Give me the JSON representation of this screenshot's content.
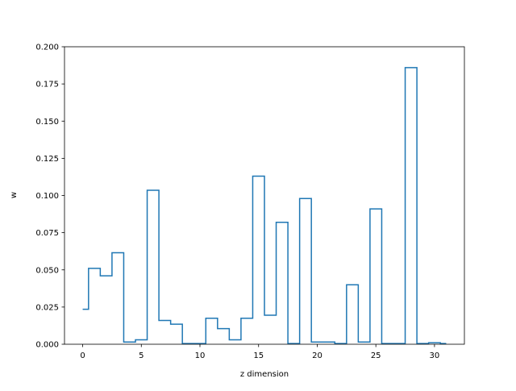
{
  "chart_data": {
    "type": "line",
    "style": "step",
    "title": "",
    "xlabel": "z dimension",
    "ylabel": "w",
    "xlim": [
      -1.55,
      32.55
    ],
    "ylim": [
      0.0,
      0.2
    ],
    "grid": false,
    "legend": "none",
    "x": [
      0,
      1,
      2,
      3,
      4,
      5,
      6,
      7,
      8,
      9,
      10,
      11,
      12,
      13,
      14,
      15,
      16,
      17,
      18,
      19,
      20,
      21,
      22,
      23,
      24,
      25,
      26,
      27,
      28,
      29,
      30,
      31
    ],
    "series": [
      {
        "values": [
          0.0235,
          0.051,
          0.046,
          0.0615,
          0.0015,
          0.003,
          0.1035,
          0.016,
          0.0135,
          0.0005,
          0.0005,
          0.0175,
          0.0105,
          0.003,
          0.0175,
          0.113,
          0.0195,
          0.082,
          0.0005,
          0.098,
          0.0015,
          0.0015,
          0.0005,
          0.04,
          0.0015,
          0.091,
          0.0005,
          0.0005,
          0.186,
          0.0005,
          0.001,
          0.0005
        ],
        "color": "#1f77b4"
      }
    ],
    "xticks": [
      0,
      5,
      10,
      15,
      20,
      25,
      30
    ],
    "yticks": [
      0.0,
      0.025,
      0.05,
      0.075,
      0.1,
      0.125,
      0.15,
      0.175,
      0.2
    ],
    "ytick_labels": [
      "0.000",
      "0.025",
      "0.050",
      "0.075",
      "0.100",
      "0.125",
      "0.150",
      "0.175",
      "0.200"
    ]
  }
}
